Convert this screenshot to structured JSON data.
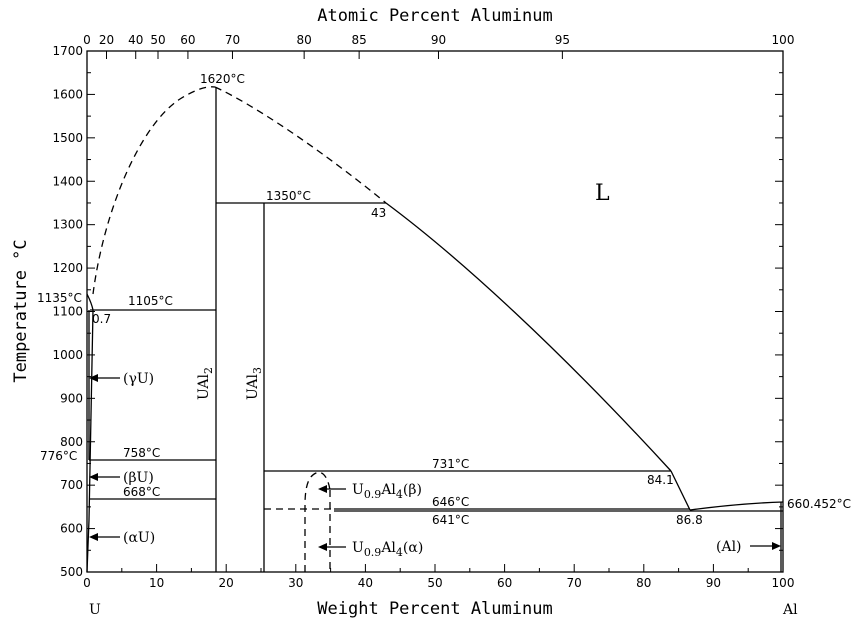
{
  "axes": {
    "top_title": "Atomic Percent Aluminum",
    "bottom_title": "Weight Percent Aluminum",
    "left_title": "Temperature °C",
    "left_element": "U",
    "right_element": "Al",
    "x_range": [
      0,
      100
    ],
    "y_range": [
      500,
      1700
    ],
    "x_ticks": [
      0,
      10,
      20,
      30,
      40,
      50,
      60,
      70,
      80,
      90,
      100
    ],
    "y_ticks": [
      500,
      600,
      700,
      800,
      900,
      1000,
      1100,
      1200,
      1300,
      1400,
      1500,
      1600,
      1700
    ],
    "top_ticks": [
      {
        "label": "0",
        "wt": 0
      },
      {
        "label": "20",
        "wt": 2.8
      },
      {
        "label": "40",
        "wt": 7.0
      },
      {
        "label": "50",
        "wt": 10.2
      },
      {
        "label": "60",
        "wt": 14.5
      },
      {
        "label": "70",
        "wt": 20.9
      },
      {
        "label": "80",
        "wt": 31.2
      },
      {
        "label": "85",
        "wt": 39.1
      },
      {
        "label": "90",
        "wt": 50.5
      },
      {
        "label": "95",
        "wt": 68.3
      },
      {
        "label": "100",
        "wt": 100
      }
    ]
  },
  "annotations": {
    "t1620": "1620°C",
    "t1350": "1350°C",
    "c43": "43",
    "t1135": "1135°C",
    "t1105": "1105°C",
    "c07": "0.7",
    "t776": "776°C",
    "t758": "758°C",
    "t731": "731°C",
    "c841": "84.1",
    "t668": "668°C",
    "t646": "646°C",
    "t641": "641°C",
    "c868": "86.8",
    "t660": "660.452°C"
  },
  "phases": {
    "liquid": "L",
    "gamma_u": "(γU)",
    "beta_u": "(βU)",
    "alpha_u": "(αU)",
    "al": "(Al)",
    "ual2_main": "UAl",
    "ual2_sub": "2",
    "ual3_main": "UAl",
    "ual3_sub": "3",
    "u09al4_beta_a": "U",
    "u09al4_beta_b": "0.9",
    "u09al4_beta_c": "Al",
    "u09al4_beta_d": "4",
    "u09al4_beta_e": "(β)",
    "u09al4_alpha_a": "U",
    "u09al4_alpha_b": "0.9",
    "u09al4_alpha_c": "Al",
    "u09al4_alpha_d": "4",
    "u09al4_alpha_e": "(α)"
  }
}
